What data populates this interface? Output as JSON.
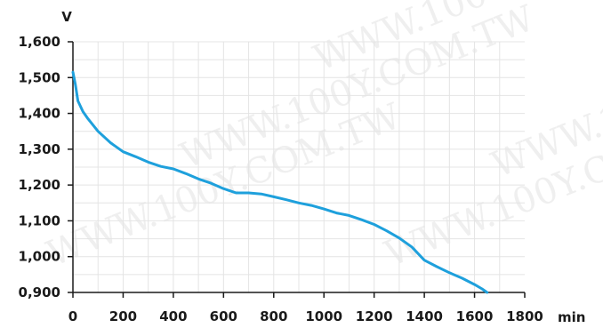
{
  "watermark": {
    "text": "WWW.100Y.COM.TW"
  },
  "chart_data": {
    "type": "line",
    "title": "",
    "ylabel": "V",
    "xlabel": "min",
    "xlim": [
      0,
      1800
    ],
    "ylim": [
      0.9,
      1.6
    ],
    "x_ticks": [
      0,
      200,
      400,
      600,
      800,
      1000,
      1200,
      1400,
      1600,
      1800
    ],
    "x_tick_labels": [
      "0",
      "200",
      "400",
      "600",
      "800",
      "1000",
      "1200",
      "1400",
      "1600",
      "1800"
    ],
    "y_ticks": [
      0.9,
      1.0,
      1.1,
      1.2,
      1.3,
      1.4,
      1.5,
      1.6
    ],
    "y_tick_labels": [
      "0,900",
      "1,000",
      "1,100",
      "1,200",
      "1,300",
      "1,400",
      "1,500",
      "1,600"
    ],
    "grid": true,
    "line_color": "#1ea0dc",
    "series": [
      {
        "x": [
          0,
          10,
          20,
          40,
          60,
          100,
          150,
          200,
          250,
          300,
          350,
          400,
          450,
          500,
          550,
          600,
          650,
          700,
          750,
          800,
          850,
          900,
          950,
          1000,
          1050,
          1100,
          1150,
          1200,
          1250,
          1300,
          1350,
          1400,
          1450,
          1500,
          1550,
          1600,
          1630,
          1650
        ],
        "y": [
          1.515,
          1.48,
          1.435,
          1.405,
          1.385,
          1.35,
          1.318,
          1.293,
          1.279,
          1.264,
          1.252,
          1.245,
          1.232,
          1.217,
          1.205,
          1.19,
          1.178,
          1.178,
          1.175,
          1.167,
          1.159,
          1.15,
          1.143,
          1.133,
          1.122,
          1.115,
          1.103,
          1.09,
          1.072,
          1.052,
          1.027,
          0.99,
          0.972,
          0.955,
          0.94,
          0.922,
          0.91,
          0.9
        ]
      }
    ]
  }
}
